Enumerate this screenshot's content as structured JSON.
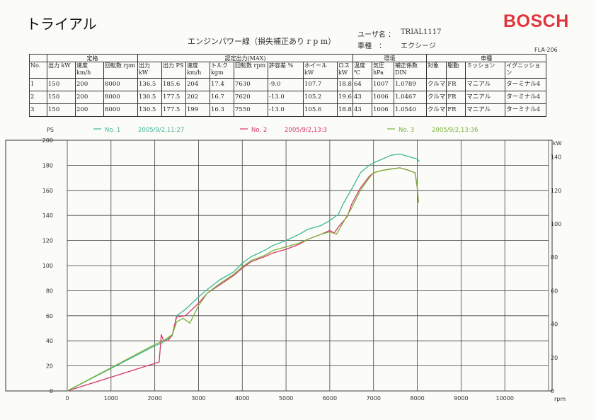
{
  "header": {
    "title": "トライアル",
    "logo_text": "BOSCH",
    "subtitle": "エンジンパワー線（損失補正あり r p m）",
    "user_label": "ユーザ名 ：",
    "user_value": "TRIAL1117",
    "car_label": "車種　：",
    "car_value": "エクシージ",
    "code": "FLA-206"
  },
  "table": {
    "group_headers": {
      "rated": "定格",
      "measured": "認定出力(MAX)",
      "environment": "環境",
      "vehicle": "車種"
    },
    "columns": [
      "No.",
      "出力 kW",
      "速度 km/h",
      "回転数 rpm",
      "出力 kW",
      "出力 PS",
      "速度 km/h",
      "トルク kgm",
      "回転数 rpm",
      "許容差 %",
      "ホイール kW",
      "ロス kW",
      "温度 ℃",
      "気圧 hPa",
      "補正係数 DIN",
      "対象",
      "駆動",
      "ミッション",
      "イグニッション"
    ],
    "rows": [
      [
        "1",
        "150",
        "200",
        "8000",
        "136.5",
        "185.6",
        "204",
        "17.4",
        "7630",
        "-9.0",
        "107.7",
        "18.8",
        "64",
        "1007",
        "1.0789",
        "クルマ",
        "FR",
        "マニアル",
        "ターミナル4"
      ],
      [
        "2",
        "150",
        "200",
        "8000",
        "130.5",
        "177.5",
        "202",
        "16.7",
        "7620",
        "-13.0",
        "105.2",
        "19.6",
        "43",
        "1006",
        "1.0467",
        "クルマ",
        "FR",
        "マニアル",
        "ターミナル4"
      ],
      [
        "3",
        "150",
        "200",
        "8000",
        "130.5",
        "177.5",
        "199",
        "16.3",
        "7550",
        "-13.0",
        "105.6",
        "18.8",
        "43",
        "1006",
        "1.0540",
        "クルマ",
        "FR",
        "マニアル",
        "ターミナル4"
      ]
    ]
  },
  "chart_data": {
    "type": "line",
    "title": "",
    "xlabel": "rpm",
    "ylabel": "PS",
    "y2label": "kW",
    "xlim": [
      0,
      11000
    ],
    "ylim": [
      0,
      200
    ],
    "y2lim": [
      0,
      150
    ],
    "x_ticks": [
      0,
      1000,
      2000,
      3000,
      4000,
      5000,
      6000,
      7000,
      8000,
      9000,
      10000
    ],
    "y_ticks": [
      0,
      20,
      40,
      60,
      80,
      100,
      120,
      140,
      160,
      180,
      200
    ],
    "y2_ticks": [
      0,
      20,
      40,
      60,
      80,
      100,
      120,
      140
    ],
    "grid": true,
    "legend_position": "top",
    "series": [
      {
        "name": "No. 1",
        "timestamp": "2005/9/2,11:27",
        "color": "#3fb59a",
        "x": [
          0,
          2000,
          2150,
          2400,
          2500,
          2700,
          3000,
          3200,
          3500,
          3800,
          4000,
          4200,
          4500,
          4700,
          5000,
          5300,
          5500,
          5800,
          6000,
          6200,
          6300,
          6500,
          6700,
          6900,
          7000,
          7200,
          7400,
          7600,
          7800,
          7900,
          8000,
          8050
        ],
        "values": [
          0,
          36,
          38,
          44,
          60,
          65,
          75,
          81,
          89,
          95,
          102,
          107,
          112,
          116,
          120,
          125,
          129,
          132,
          136,
          141,
          149,
          161,
          174,
          180,
          182,
          185,
          188,
          189,
          187,
          186,
          185,
          183
        ]
      },
      {
        "name": "No. 2",
        "timestamp": "2005/9/2,13:3",
        "color": "#d6366c",
        "x": [
          0,
          2000,
          2100,
          2150,
          2200,
          2300,
          2400,
          2500,
          2700,
          3000,
          3200,
          3500,
          3800,
          4000,
          4200,
          4500,
          4700,
          5000,
          5300,
          5500,
          5800,
          6000,
          6100,
          6200,
          6400,
          6500,
          6700,
          6900,
          7000,
          7200,
          7400,
          7600,
          7800,
          7950,
          8000,
          8030
        ],
        "values": [
          0,
          22,
          23,
          45,
          40,
          40,
          45,
          59,
          60,
          70,
          78,
          85,
          92,
          98,
          103,
          107,
          110,
          113,
          117,
          121,
          125,
          128,
          126,
          131,
          139,
          149,
          162,
          171,
          174,
          176,
          177,
          178,
          176,
          174,
          162,
          150
        ]
      },
      {
        "name": "No. 3",
        "timestamp": "2005/9/2,13:36",
        "color": "#79b23a",
        "x": [
          0,
          2000,
          2200,
          2400,
          2500,
          2650,
          2800,
          3000,
          3200,
          3500,
          3800,
          4000,
          4200,
          4500,
          4700,
          5000,
          5300,
          5500,
          5800,
          6000,
          6150,
          6300,
          6500,
          6700,
          6900,
          7000,
          7200,
          7400,
          7600,
          7800,
          7950,
          8000,
          8030
        ],
        "values": [
          0,
          37,
          40,
          45,
          55,
          58,
          54,
          68,
          78,
          86,
          93,
          99,
          104,
          108,
          112,
          115,
          118,
          121,
          125,
          127,
          125,
          134,
          146,
          160,
          170,
          174,
          176,
          177,
          178,
          176,
          174,
          162,
          150
        ]
      }
    ]
  }
}
